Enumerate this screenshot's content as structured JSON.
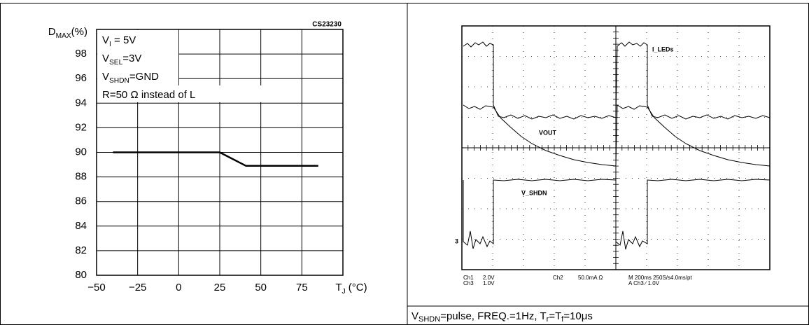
{
  "chart_data": {
    "type": "line",
    "code": "CS23230",
    "ylabel": [
      "D",
      "MAX",
      "(%)"
    ],
    "xlabel": [
      "T",
      "J",
      " (°C)"
    ],
    "annotations": [
      [
        "V",
        "I",
        " = 5V"
      ],
      [
        "V",
        "SEL",
        "=3V"
      ],
      [
        "V",
        "SHDN",
        "=GND"
      ],
      [
        "R=50 Ω instead of L"
      ]
    ],
    "x": [
      -40,
      25,
      41,
      85
    ],
    "values": [
      90,
      90,
      88.9,
      88.9
    ],
    "color": "#000000",
    "xlim": [
      -50,
      100
    ],
    "xticks": [
      {
        "value": -50,
        "label": "−50"
      },
      {
        "value": -25,
        "label": "−25"
      },
      0,
      25,
      50,
      75
    ],
    "ylim": [
      80,
      100
    ],
    "yticks": [
      80,
      82,
      84,
      86,
      88,
      90,
      92,
      94,
      96,
      98
    ],
    "grid": true
  },
  "scope": {
    "labels": {
      "i_leds": "I_LEDs",
      "vout": "VOUT",
      "v_shdn": "V_SHDN"
    },
    "marker": "3",
    "readout": [
      "Ch1",
      "2.0V",
      "Ch3",
      "1.0V",
      "Ch2",
      "50.0mA Ω",
      "M 200ms 250S/s",
      "4.0ms/pt",
      "A Ch3 ∕ 1.0V"
    ]
  },
  "caption": [
    "V",
    "SHDN",
    "=pulse, FREQ.=1Hz, T",
    "r",
    "=T",
    "f",
    "=10μs"
  ]
}
